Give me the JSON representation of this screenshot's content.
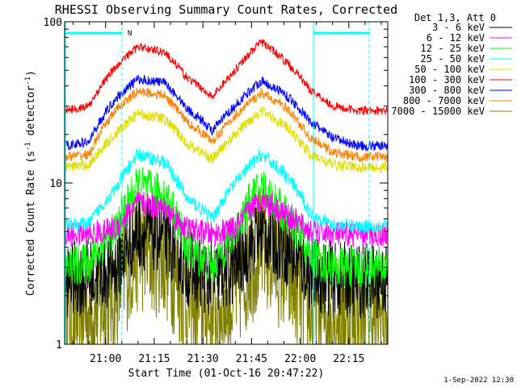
{
  "chart_data": {
    "type": "line",
    "title": "RHESSI Observing Summary Count Rates, Corrected",
    "xlabel": "Start Time (01-Oct-16 20:47:22)",
    "ylabel": "Corrected Count Rate (s⁻¹ detector⁻¹)",
    "ylabel_main": "Corrected Count Rate (s",
    "ylabel_sup1": "-1",
    "ylabel_mid": " detector",
    "ylabel_sup2": "-1",
    "ylabel_end": ")",
    "y_scale": "log",
    "ylim": [
      1,
      100
    ],
    "xlim": [
      "20:47:22",
      "22:27:00"
    ],
    "x_ticks": [
      "21:00",
      "21:15",
      "21:30",
      "21:45",
      "22:00",
      "22:15"
    ],
    "y_ticks": [
      "1",
      "10",
      "100"
    ],
    "legend_title": "Det 1,3, Att 0",
    "legend_position": "right",
    "series": [
      {
        "name": "3 - 6 keV",
        "color": "#000000",
        "x": [
          "20:47",
          "20:55",
          "21:03",
          "21:10",
          "21:18",
          "21:25",
          "21:33",
          "21:40",
          "21:48",
          "21:55",
          "22:03",
          "22:10",
          "22:18",
          "22:26"
        ],
        "values": [
          2.5,
          2.6,
          3.0,
          5.0,
          4.8,
          3.0,
          2.5,
          3.0,
          5.0,
          4.0,
          2.8,
          2.5,
          2.5,
          2.5
        ]
      },
      {
        "name": "6 - 12 keV",
        "color": "#ff00ff",
        "x": [
          "20:47",
          "20:55",
          "21:03",
          "21:10",
          "21:18",
          "21:25",
          "21:33",
          "21:40",
          "21:48",
          "21:55",
          "22:03",
          "22:10",
          "22:18",
          "22:26"
        ],
        "values": [
          4.8,
          4.8,
          5.2,
          7.5,
          7.0,
          5.2,
          4.8,
          5.2,
          8.0,
          6.5,
          5.0,
          4.8,
          4.8,
          4.8
        ]
      },
      {
        "name": "12 - 25 keV",
        "color": "#00ff00",
        "x": [
          "20:47",
          "20:55",
          "21:03",
          "21:10",
          "21:18",
          "21:25",
          "21:33",
          "21:40",
          "21:48",
          "21:55",
          "22:03",
          "22:10",
          "22:18",
          "22:26"
        ],
        "values": [
          3.0,
          3.2,
          5.0,
          9.5,
          8.5,
          4.0,
          3.0,
          5.0,
          9.5,
          6.5,
          3.5,
          3.0,
          3.0,
          3.0
        ]
      },
      {
        "name": "25 - 50 keV",
        "color": "#00ffff",
        "x": [
          "20:47",
          "20:55",
          "21:03",
          "21:10",
          "21:18",
          "21:25",
          "21:33",
          "21:40",
          "21:48",
          "21:55",
          "22:03",
          "22:10",
          "22:18",
          "22:26"
        ],
        "values": [
          5.5,
          5.6,
          9.0,
          15.0,
          13.5,
          8.0,
          6.0,
          10.0,
          15.0,
          11.5,
          6.5,
          5.5,
          5.4,
          5.4
        ]
      },
      {
        "name": "50 - 100 keV",
        "color": "#e0e000",
        "x": [
          "20:47",
          "20:55",
          "21:03",
          "21:10",
          "21:18",
          "21:25",
          "21:33",
          "21:40",
          "21:48",
          "21:55",
          "22:03",
          "22:10",
          "22:18",
          "22:26"
        ],
        "values": [
          12.5,
          13.0,
          20.0,
          27.0,
          25.0,
          17.5,
          14.0,
          20.0,
          28.0,
          23.0,
          15.0,
          13.0,
          12.5,
          12.5
        ]
      },
      {
        "name": "100 - 300 keV",
        "color": "#ff0000",
        "x": [
          "20:47",
          "20:55",
          "21:03",
          "21:10",
          "21:18",
          "21:25",
          "21:33",
          "21:40",
          "21:48",
          "21:55",
          "22:03",
          "22:10",
          "22:18",
          "22:26"
        ],
        "values": [
          28,
          30,
          52,
          70,
          65,
          45,
          34,
          50,
          75,
          58,
          38,
          30,
          28,
          28
        ]
      },
      {
        "name": "300 - 800 keV",
        "color": "#0000ff",
        "x": [
          "20:47",
          "20:55",
          "21:03",
          "21:10",
          "21:18",
          "21:25",
          "21:33",
          "21:40",
          "21:48",
          "21:55",
          "22:03",
          "22:10",
          "22:18",
          "22:26"
        ],
        "values": [
          17,
          18,
          33,
          44,
          42,
          29,
          21,
          30,
          43,
          36,
          24,
          19,
          17,
          17
        ]
      },
      {
        "name": "800 - 7000 keV",
        "color": "#ff8000",
        "x": [
          "20:47",
          "20:55",
          "21:03",
          "21:10",
          "21:18",
          "21:25",
          "21:33",
          "21:40",
          "21:48",
          "21:55",
          "22:03",
          "22:10",
          "22:18",
          "22:26"
        ],
        "values": [
          14.5,
          15,
          28,
          37,
          35,
          24,
          18,
          26,
          36,
          30,
          19,
          15.5,
          14.5,
          14.5
        ]
      },
      {
        "name": "7000 - 15000 keV",
        "color": "#808000",
        "x": [
          "20:47",
          "20:55",
          "21:03",
          "21:10",
          "21:18",
          "21:25",
          "21:33",
          "21:40",
          "21:48",
          "21:55",
          "22:03",
          "22:10",
          "22:18",
          "22:26"
        ],
        "values": [
          1.5,
          1.5,
          2.0,
          3.8,
          3.5,
          1.8,
          1.5,
          2.0,
          4.0,
          2.8,
          1.6,
          1.5,
          1.5,
          1.5
        ]
      }
    ],
    "annotations": {
      "segment_color": "#00ffff",
      "n_marker": "N",
      "footer_date": "1-Sep-2022 12:30"
    }
  }
}
